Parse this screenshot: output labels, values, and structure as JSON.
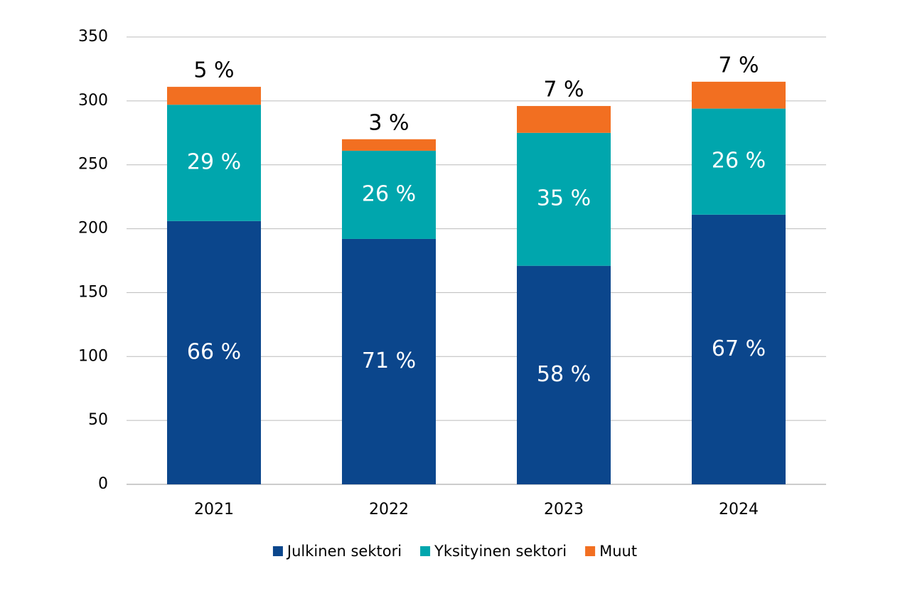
{
  "chart_data": {
    "type": "stacked_bar",
    "categories": [
      "2021",
      "2022",
      "2023",
      "2024"
    ],
    "series": [
      {
        "name": "Julkinen sektori",
        "color": "#0b468c",
        "values": [
          206,
          192,
          171,
          211
        ],
        "labels": [
          "66 %",
          "71 %",
          "58 %",
          "67 %"
        ]
      },
      {
        "name": "Yksityinen sektori",
        "color": "#00a6ad",
        "values": [
          91,
          69,
          104,
          83
        ],
        "labels": [
          "29 %",
          "26 %",
          "35 %",
          "26 %"
        ]
      },
      {
        "name": "Muut",
        "color": "#f26f21",
        "values": [
          14,
          9,
          21,
          21
        ],
        "labels": [
          "5 %",
          "3 %",
          "7 %",
          "7 %"
        ]
      }
    ],
    "ylim": [
      0,
      350
    ],
    "yticks": [
      0,
      50,
      100,
      150,
      200,
      250,
      300,
      350
    ],
    "grid": true
  }
}
